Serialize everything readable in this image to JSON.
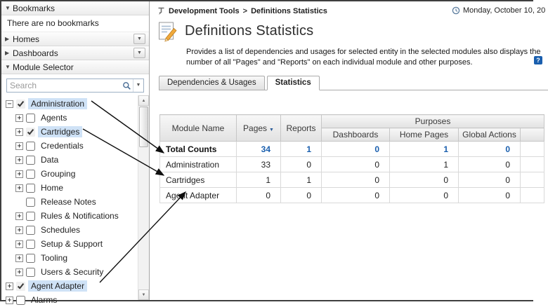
{
  "colors": {
    "accent_blue": "#1a5fae",
    "selection_blue": "#cfe2f6"
  },
  "icons": {
    "chevron_down": "▼",
    "chevron_right": "▶",
    "dropdown": "▼",
    "sort_desc": "▼",
    "scroll_up": "▲",
    "scroll_down": "▼",
    "expand_glyph": "+",
    "collapse_glyph": "−",
    "breadcrumb_separator": ">",
    "help_glyph": "?"
  },
  "sidebar": {
    "sections": [
      {
        "label": "Bookmarks",
        "state": "expanded"
      },
      {
        "label": "Homes",
        "state": "collapsed"
      },
      {
        "label": "Dashboards",
        "state": "collapsed"
      },
      {
        "label": "Module Selector",
        "state": "expanded"
      }
    ],
    "bookmarks_message": "There are no bookmarks",
    "search_placeholder": "Search",
    "tree": [
      {
        "label": "Administration",
        "level": 0,
        "expander": "collapse",
        "checked": true,
        "selected": true
      },
      {
        "label": "Agents",
        "level": 1,
        "expander": "expand",
        "checked": false,
        "selected": false
      },
      {
        "label": "Cartridges",
        "level": 1,
        "expander": "expand",
        "checked": true,
        "selected": true
      },
      {
        "label": "Credentials",
        "level": 1,
        "expander": "expand",
        "checked": false,
        "selected": false
      },
      {
        "label": "Data",
        "level": 1,
        "expander": "expand",
        "checked": false,
        "selected": false
      },
      {
        "label": "Grouping",
        "level": 1,
        "expander": "expand",
        "checked": false,
        "selected": false
      },
      {
        "label": "Home",
        "level": 1,
        "expander": "expand",
        "checked": false,
        "selected": false
      },
      {
        "label": "Release Notes",
        "level": 1,
        "expander": "none",
        "checked": false,
        "selected": false
      },
      {
        "label": "Rules & Notifications",
        "level": 1,
        "expander": "expand",
        "checked": false,
        "selected": false
      },
      {
        "label": "Schedules",
        "level": 1,
        "expander": "expand",
        "checked": false,
        "selected": false
      },
      {
        "label": "Setup & Support",
        "level": 1,
        "expander": "expand",
        "checked": false,
        "selected": false
      },
      {
        "label": "Tooling",
        "level": 1,
        "expander": "expand",
        "checked": false,
        "selected": false
      },
      {
        "label": "Users & Security",
        "level": 1,
        "expander": "expand",
        "checked": false,
        "selected": false
      },
      {
        "label": "Agent Adapter",
        "level": 0,
        "expander": "expand",
        "checked": true,
        "selected": true
      },
      {
        "label": "Alarms",
        "level": 0,
        "expander": "expand",
        "checked": false,
        "selected": false
      }
    ]
  },
  "header": {
    "breadcrumb": [
      "Development Tools",
      "Definitions Statistics"
    ],
    "date": "Monday, October 10, 20",
    "title": "Definitions Statistics",
    "description": "Provides a list of dependencies and usages for selected entity in the selected modules also displays the number of all \"Pages\" and \"Reports\" on each individual module and other purposes."
  },
  "tabs": [
    {
      "label": "Dependencies & Usages",
      "active": false
    },
    {
      "label": "Statistics",
      "active": true
    }
  ],
  "table": {
    "columns": [
      "Module Name",
      "Pages",
      "Reports"
    ],
    "sorted_column": "Pages",
    "purposes_label": "Purposes",
    "purpose_columns": [
      "Dashboards",
      "Home Pages",
      "Global Actions"
    ],
    "rows": [
      {
        "name": "Total Counts",
        "values": [
          "34",
          "1",
          "0",
          "1",
          "0"
        ],
        "total": true
      },
      {
        "name": "Administration",
        "values": [
          "33",
          "0",
          "0",
          "1",
          "0"
        ],
        "total": false
      },
      {
        "name": "Cartridges",
        "values": [
          "1",
          "1",
          "0",
          "0",
          "0"
        ],
        "total": false
      },
      {
        "name": "Agent Adapter",
        "values": [
          "0",
          "0",
          "0",
          "0",
          "0"
        ],
        "total": false
      }
    ]
  }
}
